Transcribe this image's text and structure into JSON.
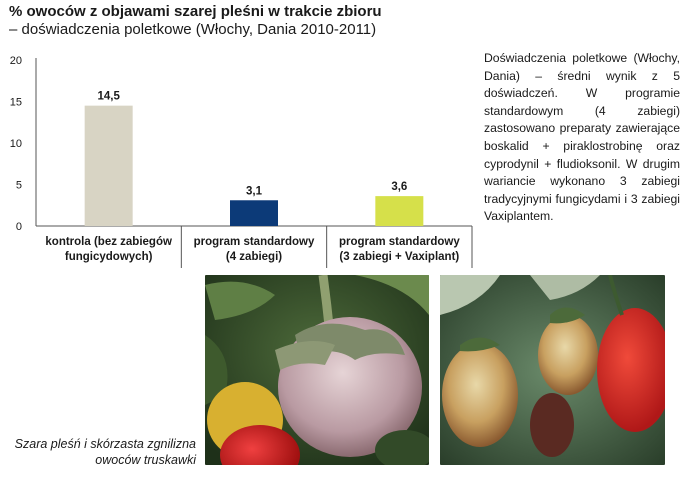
{
  "title": {
    "line1": "% owoców z objawami szarej pleśni w trakcie zbioru",
    "line2": "– doświadczenia poletkowe (Włochy, Dania 2010-2011)"
  },
  "description": "Doświadczenia poletkowe (Włochy, Dania) – średni wynik z 5 doświadczeń. W programie standardowym (4 zabiegi) zastosowano preparaty zawierające boskalid + piraklostrobinę oraz cyprodynil + fludioksonil. W drugim wariancie wykonano 3 zabiegi tradycyjnymi fungicydami i 3 zabiegi Vaxiplantem.",
  "caption": "Szara pleśń i skórzasta zgnilizna owoców truskawki",
  "chart_data": {
    "type": "bar",
    "categories": [
      [
        "kontrola (bez zabiegów",
        "fungicydowych)"
      ],
      [
        "program standardowy",
        "(4 zabiegi)"
      ],
      [
        "program standardowy",
        "(3 zabiegi + Vaxiplant)"
      ]
    ],
    "values": [
      14.5,
      3.1,
      3.6
    ],
    "value_labels": [
      "14,5",
      "3,1",
      "3,6"
    ],
    "colors": [
      "#d8d4c4",
      "#0c3a78",
      "#d6e04a"
    ],
    "yticks": [
      0,
      5,
      10,
      15,
      20
    ],
    "ylim": [
      0,
      20
    ],
    "grid": false
  }
}
